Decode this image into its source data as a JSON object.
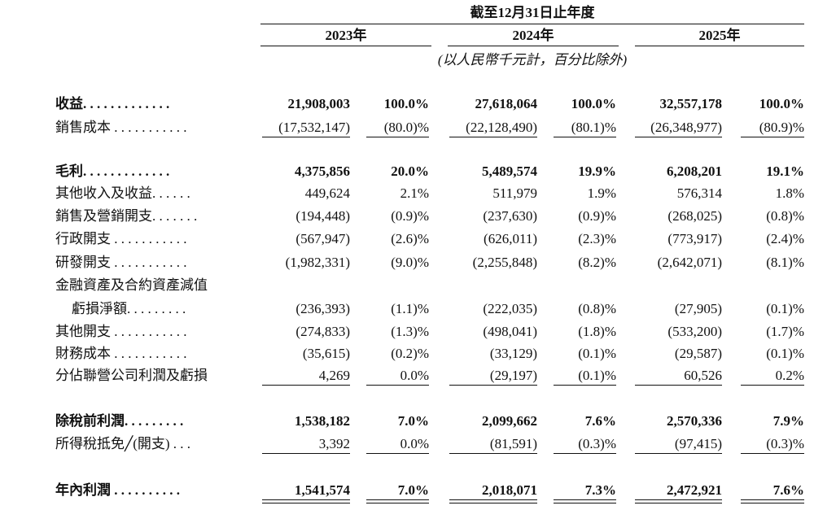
{
  "header": {
    "period": "截至12月31日止年度",
    "years": [
      "2023年",
      "2024年",
      "2025年"
    ],
    "unit": "(以人民幣千元計，百分比除外)"
  },
  "rows": [
    {
      "label": "收益. . . . . . . . . . . . .",
      "bold": true,
      "cells": [
        "21,908,003",
        "100.0%",
        "27,618,064",
        "100.0%",
        "32,557,178",
        "100.0%"
      ]
    },
    {
      "label": "銷售成本 . . . . . . . . . . .",
      "underline": "single",
      "cells": [
        "(17,532,147)",
        "(80.0)%",
        "(22,128,490)",
        "(80.1)%",
        "(26,348,977)",
        "(80.9)%"
      ]
    },
    {
      "label": "毛利. . . . . . . . . . . . .",
      "bold": true,
      "cells": [
        "4,375,856",
        "20.0%",
        "5,489,574",
        "19.9%",
        "6,208,201",
        "19.1%"
      ]
    },
    {
      "label": "其他收入及收益. . . . . .",
      "cells": [
        "449,624",
        "2.1%",
        "511,979",
        "1.9%",
        "576,314",
        "1.8%"
      ]
    },
    {
      "label": "銷售及營銷開支. . . . . . .",
      "cells": [
        "(194,448)",
        "(0.9)%",
        "(237,630)",
        "(0.9)%",
        "(268,025)",
        "(0.8)%"
      ]
    },
    {
      "label": "行政開支 . . . . . . . . . . .",
      "cells": [
        "(567,947)",
        "(2.6)%",
        "(626,011)",
        "(2.3)%",
        "(773,917)",
        "(2.4)%"
      ]
    },
    {
      "label": "研發開支 . . . . . . . . . . .",
      "cells": [
        "(1,982,331)",
        "(9.0)%",
        "(2,255,848)",
        "(8.2)%",
        "(2,642,071)",
        "(8.1)%"
      ]
    },
    {
      "label": "金融資產及合約資產減值",
      "cells": []
    },
    {
      "label": "虧損淨額. . . . . . . . .",
      "indent": true,
      "cells": [
        "(236,393)",
        "(1.1)%",
        "(222,035)",
        "(0.8)%",
        "(27,905)",
        "(0.1)%"
      ]
    },
    {
      "label": "其他開支 . . . . . . . . . . .",
      "cells": [
        "(274,833)",
        "(1.3)%",
        "(498,041)",
        "(1.8)%",
        "(533,200)",
        "(1.7)%"
      ]
    },
    {
      "label": "財務成本 . . . . . . . . . . .",
      "cells": [
        "(35,615)",
        "(0.2)%",
        "(33,129)",
        "(0.1)%",
        "(29,587)",
        "(0.1)%"
      ]
    },
    {
      "label": "分佔聯營公司利潤及虧損",
      "underline": "single",
      "cells": [
        "4,269",
        "0.0%",
        "(29,197)",
        "(0.1)%",
        "60,526",
        "0.2%"
      ]
    },
    {
      "label": "除稅前利潤. . . . . . . . .",
      "bold": true,
      "cells": [
        "1,538,182",
        "7.0%",
        "2,099,662",
        "7.6%",
        "2,570,336",
        "7.9%"
      ]
    },
    {
      "label": "所得稅抵免╱(開支) . . .",
      "underline": "single",
      "cells": [
        "3,392",
        "0.0%",
        "(81,591)",
        "(0.3)%",
        "(97,415)",
        "(0.3)%"
      ]
    },
    {
      "label": "年內利潤 . . . . . . . . . .",
      "bold": true,
      "underline": "double",
      "cells": [
        "1,541,574",
        "7.0%",
        "2,018,071",
        "7.3%",
        "2,472,921",
        "7.6%"
      ]
    }
  ]
}
